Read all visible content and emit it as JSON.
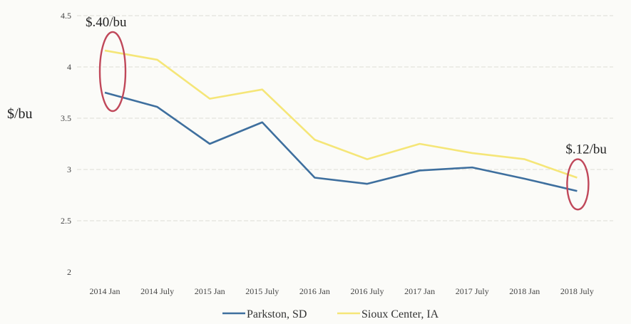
{
  "chart_data": {
    "type": "line",
    "title": "",
    "xlabel": "",
    "ylabel": "$/bu",
    "categories": [
      "2014 Jan",
      "2014 July",
      "2015 Jan",
      "2015 July",
      "2016 Jan",
      "2016 July",
      "2017 Jan",
      "2017 July",
      "2018 Jan",
      "2018 July"
    ],
    "y_ticks": [
      "4.5",
      "4",
      "3.5",
      "3",
      "2.5",
      "2"
    ],
    "ylim": [
      2,
      4.5
    ],
    "grid": true,
    "legend_position": "bottom",
    "series": [
      {
        "name": "Parkston, SD",
        "color": "#3e6f9e",
        "values": [
          3.75,
          3.61,
          3.25,
          3.46,
          2.92,
          2.86,
          2.99,
          3.02,
          2.91,
          2.79
        ]
      },
      {
        "name": "Sioux Center, IA",
        "color": "#f5e678",
        "values": [
          4.16,
          4.07,
          3.69,
          3.78,
          3.29,
          3.1,
          3.25,
          3.16,
          3.1,
          2.92
        ]
      }
    ],
    "annotations": [
      {
        "text": "$.40/bu",
        "category": "2014 Jan"
      },
      {
        "text": "$.12/bu",
        "category": "2018 July"
      }
    ],
    "annotation_color": "#c0485a"
  }
}
